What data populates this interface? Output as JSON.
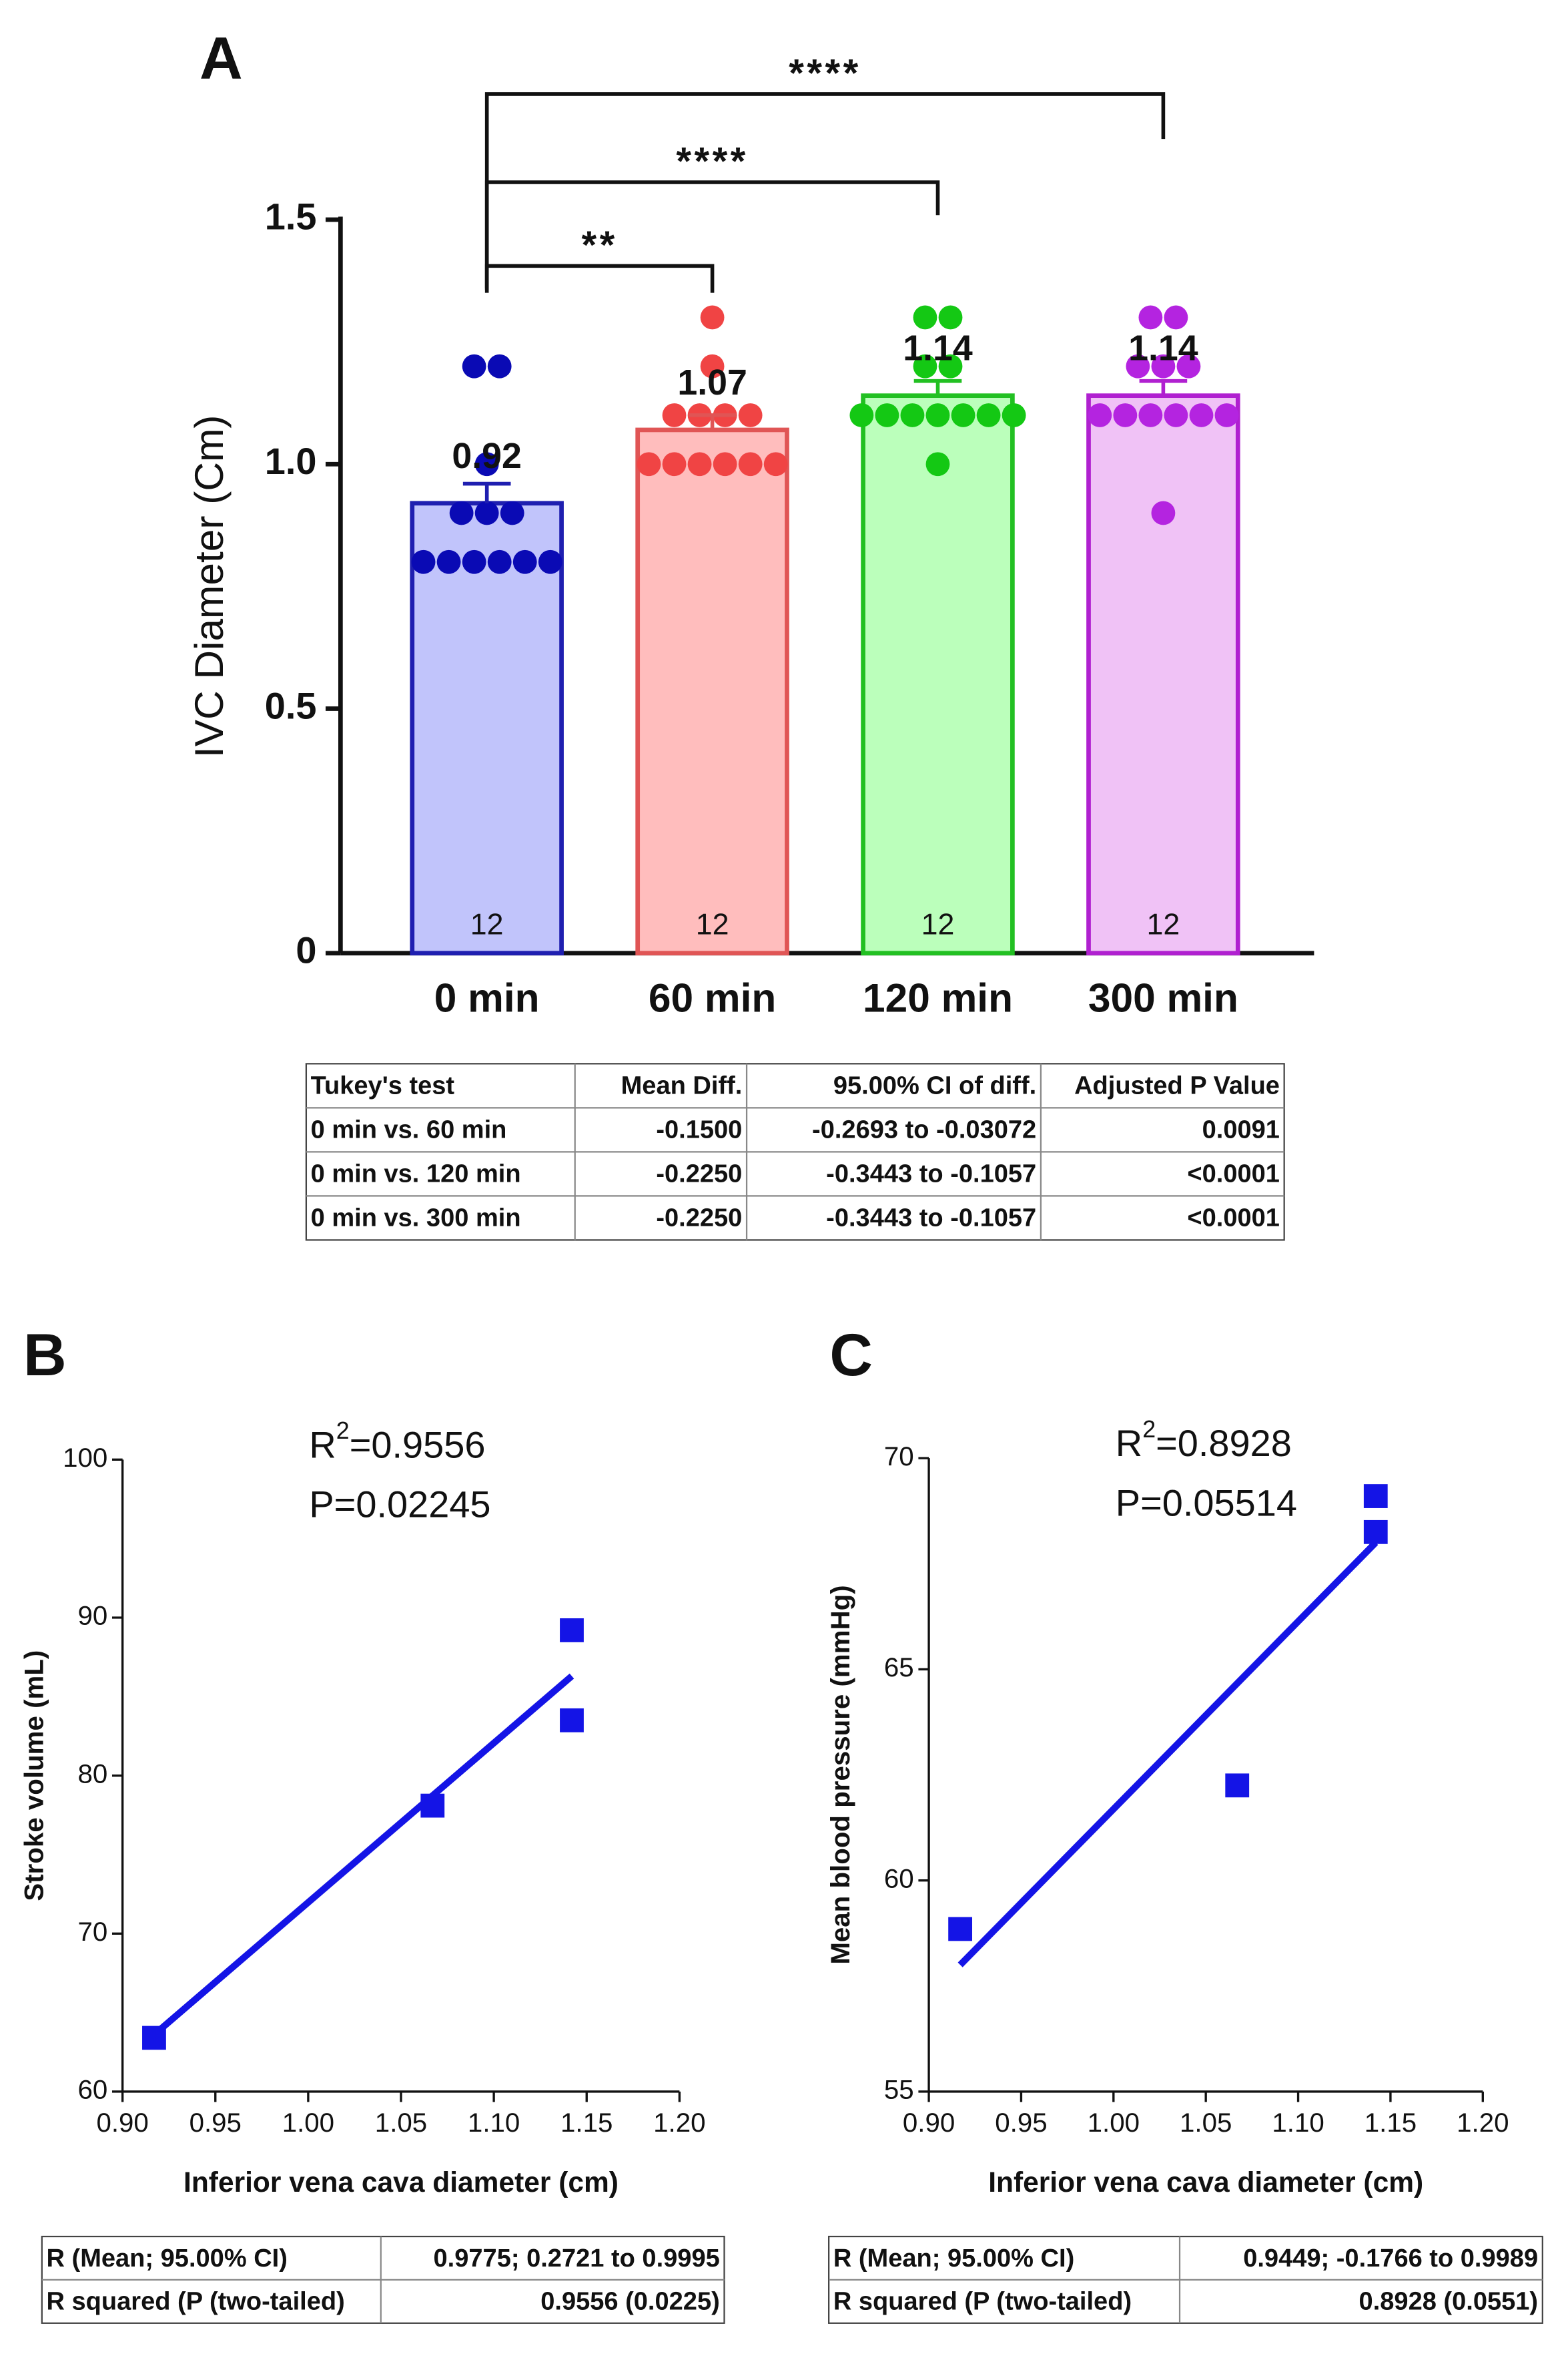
{
  "chart_data": [
    {
      "type": "bar",
      "panel": "A",
      "ylabel": "IVC Diameter (Cm)",
      "categories": [
        "0 min",
        "60 min",
        "120 min",
        "300 min"
      ],
      "values": [
        0.92,
        1.07,
        1.14,
        1.14
      ],
      "errors": [
        0.04,
        0.03,
        0.03,
        0.03
      ],
      "n": [
        12,
        12,
        12,
        12
      ],
      "colors": [
        "#c1c4fb",
        "#ffbdbd",
        "#bbffbb",
        "#f0c2f6"
      ],
      "edge_colors": [
        "#1f1fb0",
        "#e05555",
        "#22c022",
        "#b020d0"
      ],
      "point_colors": [
        "#0a0ab4",
        "#f04444",
        "#14c814",
        "#b424e0"
      ],
      "points": [
        [
          1.2,
          1.2,
          1.0,
          0.9,
          0.9,
          0.9,
          0.8,
          0.8,
          0.8,
          0.8,
          0.8,
          0.8
        ],
        [
          1.3,
          1.2,
          1.1,
          1.1,
          1.1,
          1.1,
          1.0,
          1.0,
          1.0,
          1.0,
          1.0,
          1.0
        ],
        [
          1.3,
          1.3,
          1.2,
          1.2,
          1.1,
          1.1,
          1.1,
          1.1,
          1.1,
          1.1,
          1.1,
          1.0
        ],
        [
          1.3,
          1.3,
          1.2,
          1.2,
          1.2,
          1.1,
          1.1,
          1.1,
          1.1,
          1.1,
          1.1,
          0.9
        ]
      ],
      "comparisons": [
        {
          "groups": [
            0,
            1
          ],
          "label": "**"
        },
        {
          "groups": [
            0,
            2
          ],
          "label": "****"
        },
        {
          "groups": [
            0,
            3
          ],
          "label": "****"
        }
      ],
      "ylim": [
        0,
        1.5
      ],
      "yticks": [
        0,
        0.5,
        {
          "value": 1,
          "label": "1.0"
        },
        1.5
      ],
      "table": {
        "header": [
          "Tukey's test",
          "Mean Diff.",
          "95.00% CI of diff.",
          "Adjusted P Value"
        ],
        "rows": [
          [
            "0 min vs. 60 min",
            "-0.1500",
            "-0.2693 to -0.03072",
            "0.0091"
          ],
          [
            "0 min vs. 120 min",
            "-0.2250",
            "-0.3443 to -0.1057",
            "<0.0001"
          ],
          [
            "0 min vs. 300 min",
            "-0.2250",
            "-0.3443 to -0.1057",
            "<0.0001"
          ]
        ]
      }
    },
    {
      "type": "scatter",
      "panel": "B",
      "xlabel": "Inferior vena cava diameter (cm)",
      "ylabel": "Stroke volume (mL)",
      "r2": {
        "base": "R",
        "sup": "2",
        "rest": "=0.9556"
      },
      "p": "P=0.02245",
      "x": [
        0.917,
        1.067,
        1.142,
        1.142
      ],
      "y": [
        63.4,
        78.1,
        89.2,
        83.5
      ],
      "color": "#1414e6",
      "fit": {
        "x": [
          0.917,
          1.142
        ],
        "y": [
          63.6,
          86.3
        ]
      },
      "xlim": [
        0.9,
        1.2
      ],
      "xticks": [
        {
          "value": 0.9,
          "label": "0.90"
        },
        0.95,
        {
          "value": 1,
          "label": "1.00"
        },
        1.05,
        {
          "value": 1.1,
          "label": "1.10"
        },
        1.15,
        {
          "value": 1.2,
          "label": "1.20"
        }
      ],
      "ylim": [
        60,
        100
      ],
      "yticks": [
        60,
        70,
        80,
        90,
        100
      ],
      "table": {
        "rows": [
          [
            "R (Mean; 95.00% CI)",
            "0.9775; 0.2721 to 0.9995"
          ],
          [
            "R squared (P (two-tailed)",
            "0.9556 (0.0225)"
          ]
        ]
      }
    },
    {
      "type": "scatter",
      "panel": "C",
      "xlabel": "Inferior vena cava diameter (cm)",
      "ylabel": "Mean blood pressure (mmHg)",
      "r2": {
        "base": "R",
        "sup": "2",
        "rest": "=0.8928"
      },
      "p": "P=0.05514",
      "x": [
        0.917,
        1.067,
        1.142,
        1.142
      ],
      "y": [
        58.85,
        62.25,
        69.1,
        68.25
      ],
      "color": "#1414e6",
      "fit": {
        "x": [
          0.917,
          1.142
        ],
        "y": [
          58.0,
          68.0
        ]
      },
      "xlim": [
        0.9,
        1.2
      ],
      "xticks": [
        {
          "value": 0.9,
          "label": "0.90"
        },
        0.95,
        {
          "value": 1,
          "label": "1.00"
        },
        1.05,
        {
          "value": 1.1,
          "label": "1.10"
        },
        1.15,
        {
          "value": 1.2,
          "label": "1.20"
        }
      ],
      "ylim": [
        55,
        70
      ],
      "yticks": [
        55,
        60,
        65,
        70
      ],
      "table": {
        "rows": [
          [
            "R (Mean; 95.00% CI)",
            "0.9449; -0.1766 to 0.9989"
          ],
          [
            "R squared (P (two-tailed)",
            "0.8928 (0.0551)"
          ]
        ]
      }
    }
  ]
}
